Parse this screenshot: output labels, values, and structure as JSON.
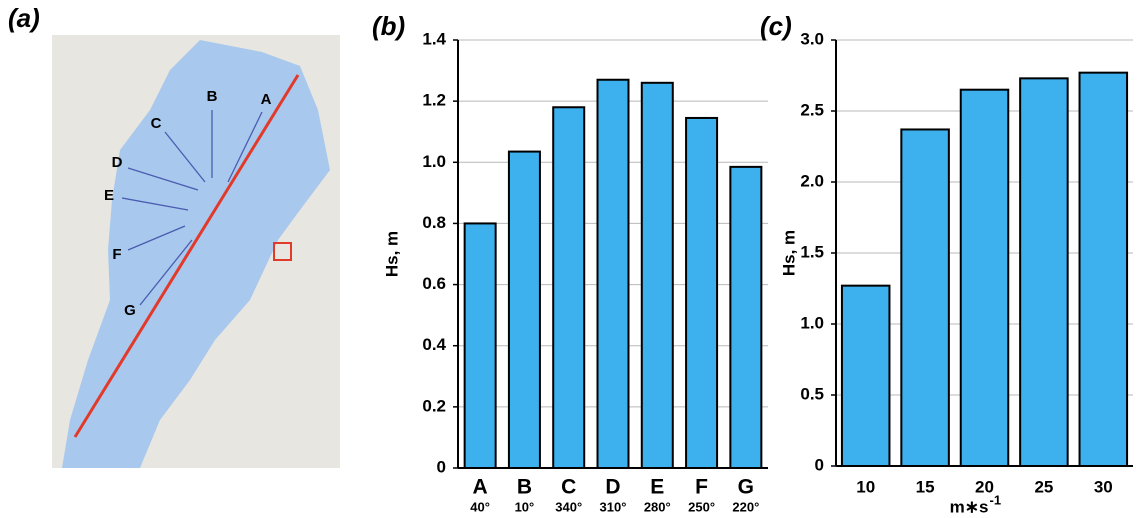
{
  "map": {
    "panel_label": "(a)",
    "fetch_labels": [
      "A",
      "B",
      "C",
      "D",
      "E",
      "F",
      "G"
    ]
  },
  "chart_data": [
    {
      "type": "bar",
      "panel_label": "(b)",
      "ylabel": "Hs, m",
      "categories": [
        "A",
        "B",
        "C",
        "D",
        "E",
        "F",
        "G"
      ],
      "category_sublabels": [
        "40°",
        "10°",
        "340°",
        "310°",
        "280°",
        "250°",
        "220°"
      ],
      "values": [
        0.8,
        1.035,
        1.18,
        1.27,
        1.26,
        1.145,
        0.985
      ],
      "color": "#3db0ee",
      "ylim": [
        0,
        1.4
      ],
      "yticks": [
        0,
        0.2,
        0.4,
        0.6,
        0.8,
        {
          "value": 1,
          "label": "1.0"
        },
        1.2,
        1.4
      ],
      "grid": true
    },
    {
      "type": "bar",
      "panel_label": "(c)",
      "ylabel": "Hs, m",
      "xlabel": "m∗s",
      "xlabel_superscript": "-1",
      "categories": [
        "10",
        "15",
        "20",
        "25",
        "30"
      ],
      "values": [
        1.27,
        2.37,
        2.65,
        2.73,
        2.77
      ],
      "color": "#3db0ee",
      "ylim": [
        0,
        3
      ],
      "yticks": [
        0,
        0.5,
        {
          "value": 1,
          "label": "1.0"
        },
        1.5,
        {
          "value": 2,
          "label": "2.0"
        },
        2.5,
        {
          "value": 3,
          "label": "3.0"
        }
      ],
      "grid": true
    }
  ]
}
